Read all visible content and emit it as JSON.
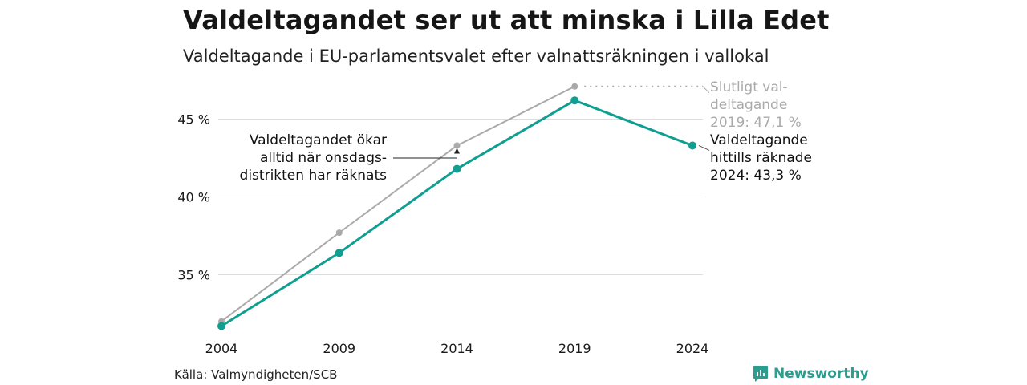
{
  "title": "Valdeltagandet ser ut att minska i Lilla Edet",
  "subtitle": "Valdeltagande i EU-parlamentsvalet efter valnattsräkningen i vallokal",
  "source": "Källa: Valmyndigheten/SCB",
  "brand": "Newsworthy",
  "colors": {
    "final": "#aaaaaa",
    "counted": "#109e91",
    "grid": "#dddddd",
    "brand": "#2a9d8f"
  },
  "chart_data": {
    "type": "line",
    "x": [
      2004,
      2009,
      2014,
      2019,
      2024
    ],
    "x_tick_labels": [
      "2004",
      "2009",
      "2014",
      "2019",
      "2024"
    ],
    "y_ticks": [
      35,
      40,
      45
    ],
    "y_tick_labels": [
      "35 %",
      "40 %",
      "45 %"
    ],
    "ylim": [
      30.6,
      48.2
    ],
    "grid": true,
    "series": [
      {
        "key": "final",
        "values": [
          32.0,
          37.7,
          43.3,
          47.1,
          null
        ]
      },
      {
        "key": "counted",
        "values": [
          31.7,
          36.4,
          41.8,
          46.2,
          43.3
        ]
      }
    ],
    "annotations": {
      "final_label": [
        "Slutligt val-",
        "deltagande",
        "2019: 47,1 %"
      ],
      "counted_label": [
        "Valdeltagande",
        "hittills räknade",
        "2024: 43,3 %"
      ],
      "note": [
        "Valdeltagandet ökar",
        "alltid när onsdags-",
        "distrikten har räknats"
      ]
    }
  }
}
